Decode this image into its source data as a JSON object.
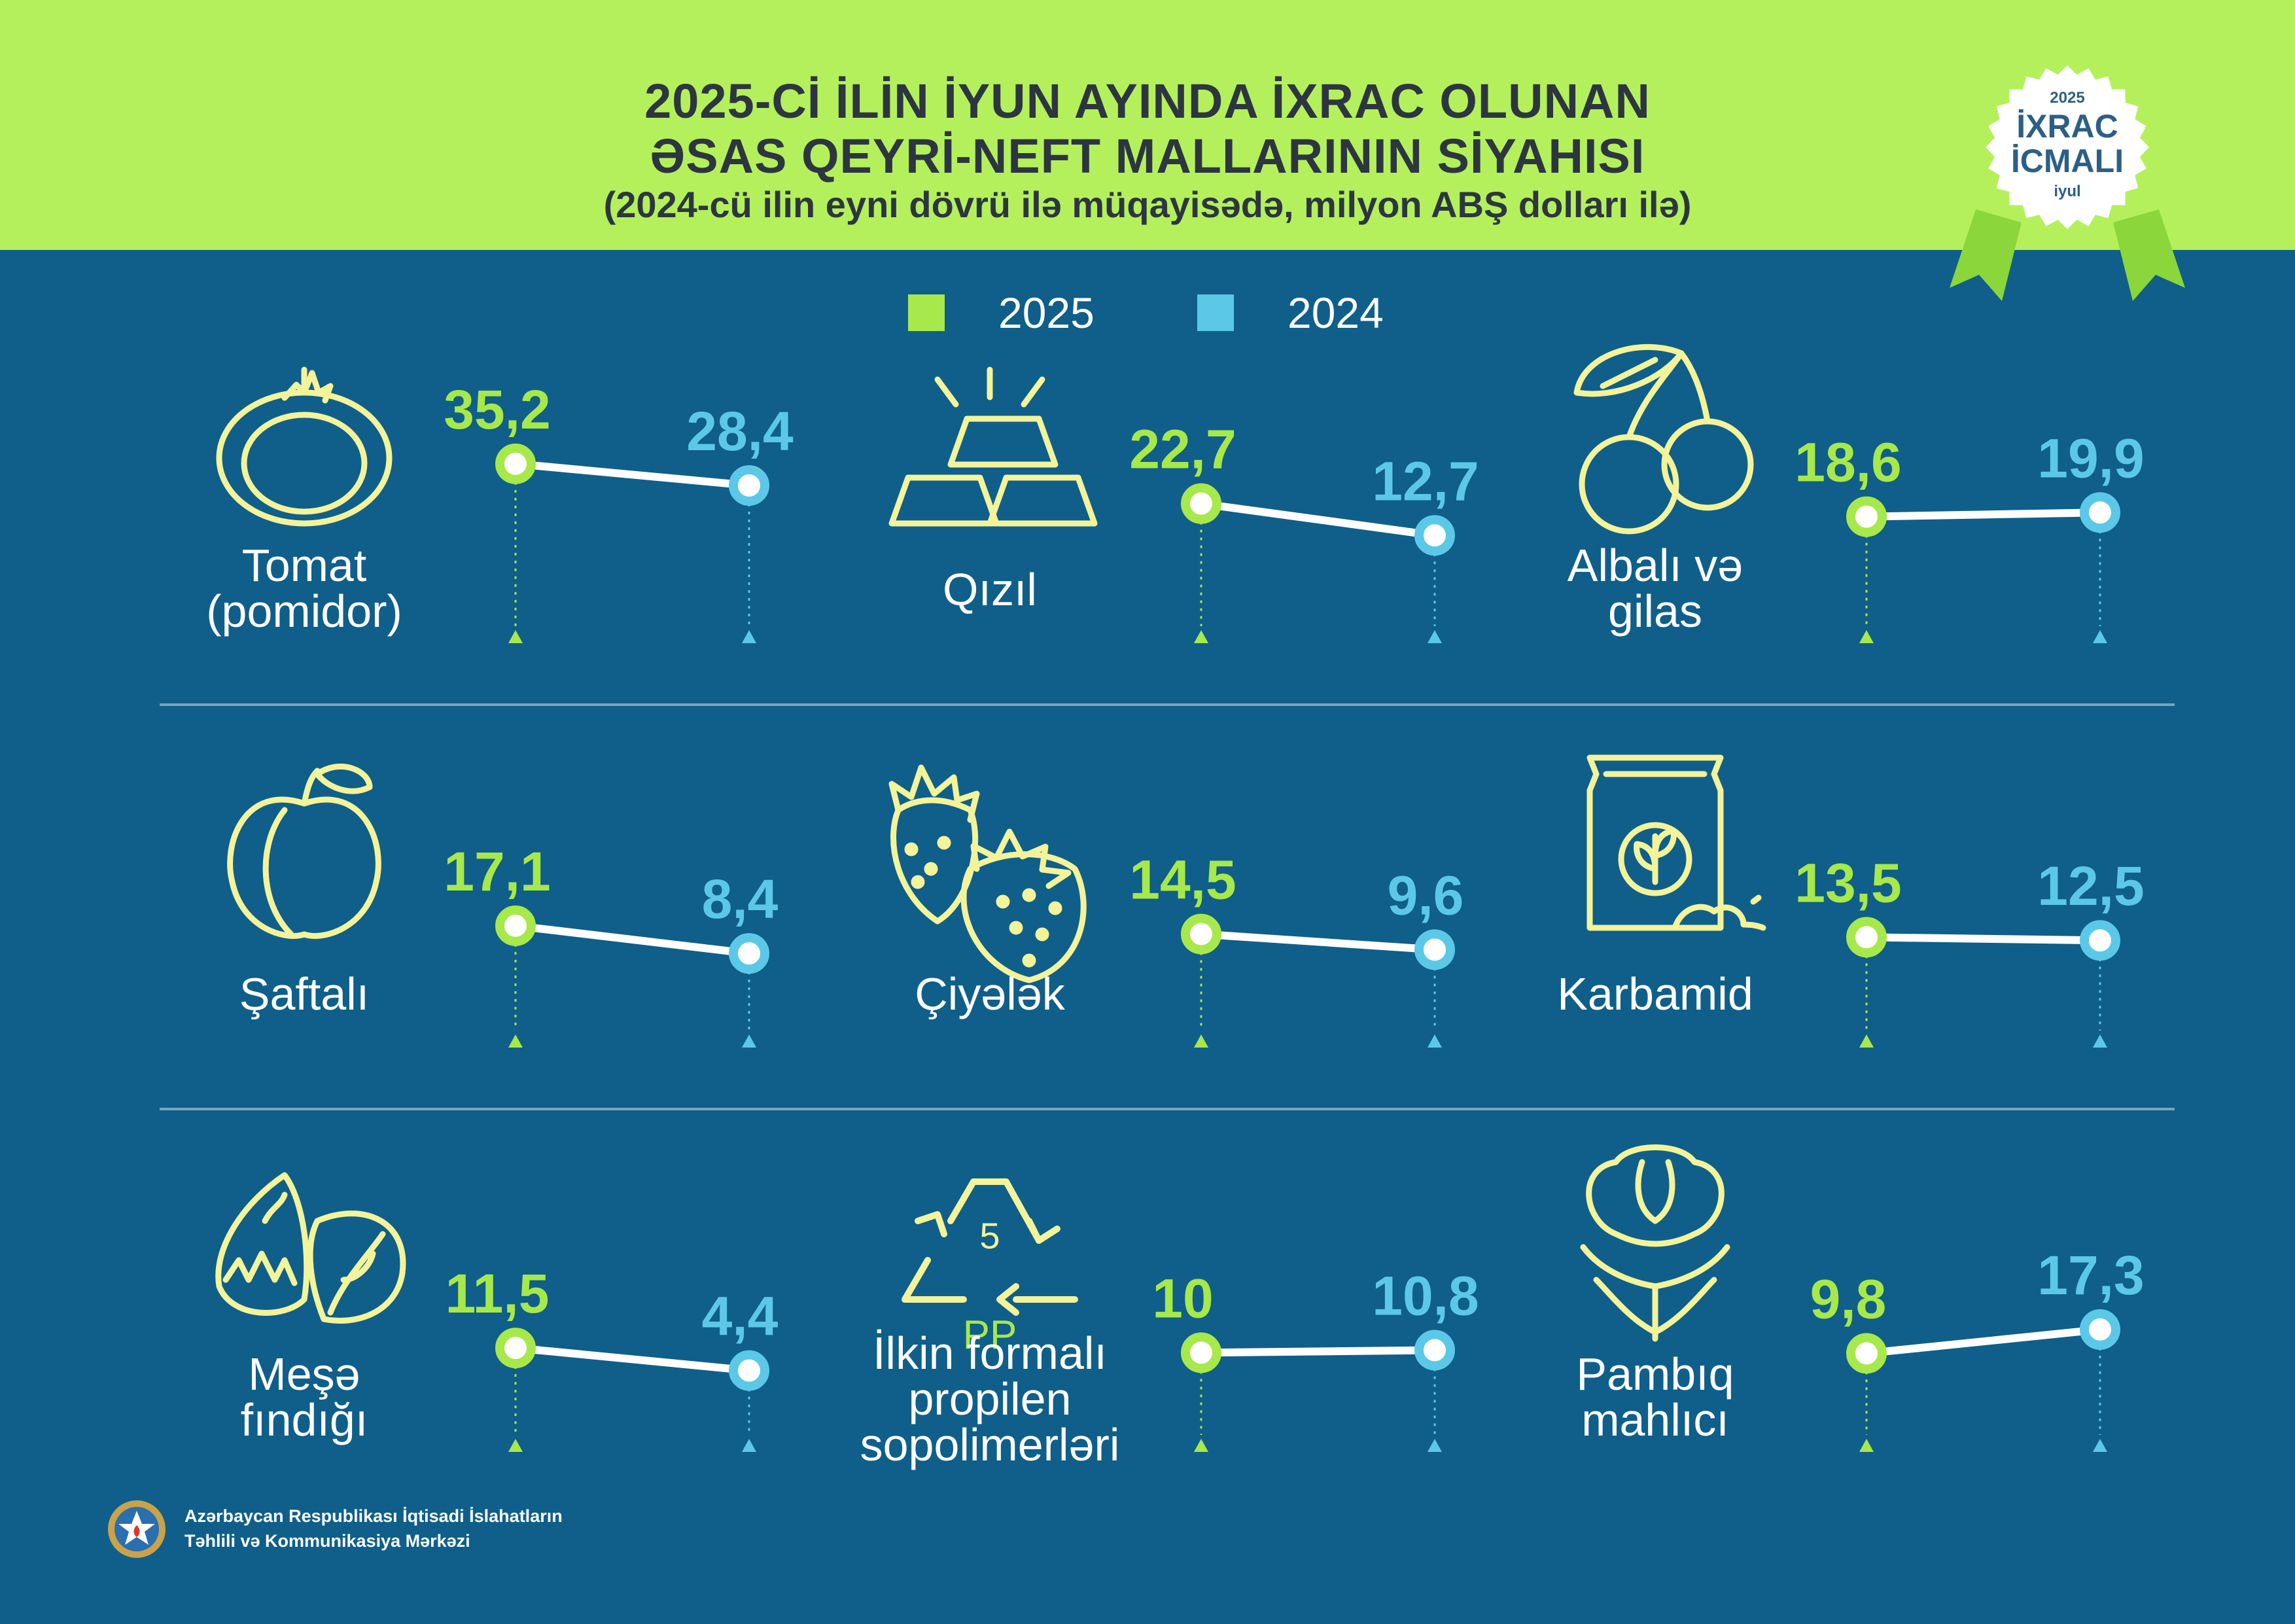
{
  "header": {
    "title_line1": "2025-Cİ İLİN İYUN AYINDA İXRAC OLUNAN",
    "title_line2": "ƏSAS QEYRİ-NEFT MALLARININ SİYAHISI",
    "subtitle": "(2024-cü ilin eyni dövrü ilə müqayisədə, milyon ABŞ dolları ilə)"
  },
  "badge": {
    "year": "2025",
    "line1": "İXRAC",
    "line2": "İCMALI",
    "month": "iyul"
  },
  "legend": {
    "label_2025": "2025",
    "label_2024": "2024"
  },
  "colors": {
    "header": "#b4f05c",
    "background": "#0f5f8a",
    "y2025": "#a7e84a",
    "y2024": "#5cc8e8",
    "icon": "#f3f39a",
    "line": "#ffffff"
  },
  "chart_data": {
    "type": "slope",
    "title": "2025-Cİ İLİN İYUN AYINDA İXRAC OLUNAN ƏSAS QEYRİ-NEFT MALLARININ SİYAHISI",
    "subtitle": "(2024-cü ilin eyni dövrü ilə müqayisədə, milyon ABŞ dolları ilə)",
    "series_names": [
      "2025",
      "2024"
    ],
    "items": [
      {
        "label": [
          "Tomat",
          "(pomidor)"
        ],
        "icon": "tomato-icon",
        "v2025": 35.2,
        "v2024": 28.4,
        "t2025": "35,2",
        "t2024": "28,4"
      },
      {
        "label": [
          "Qızıl"
        ],
        "icon": "gold-bars-icon",
        "v2025": 22.7,
        "v2024": 12.7,
        "t2025": "22,7",
        "t2024": "12,7"
      },
      {
        "label": [
          "Albalı və",
          "gilas"
        ],
        "icon": "cherry-icon",
        "v2025": 18.6,
        "v2024": 19.9,
        "t2025": "18,6",
        "t2024": "19,9"
      },
      {
        "label": [
          "Şaftalı"
        ],
        "icon": "peach-icon",
        "v2025": 17.1,
        "v2024": 8.4,
        "t2025": "17,1",
        "t2024": "8,4"
      },
      {
        "label": [
          "Çiyələk"
        ],
        "icon": "strawberry-icon",
        "v2025": 14.5,
        "v2024": 9.6,
        "t2025": "14,5",
        "t2024": "9,6"
      },
      {
        "label": [
          "Karbamid"
        ],
        "icon": "fertilizer-bag-icon",
        "v2025": 13.5,
        "v2024": 12.5,
        "t2025": "13,5",
        "t2024": "12,5"
      },
      {
        "label": [
          "Meşə",
          "fındığı"
        ],
        "icon": "hazelnut-icon",
        "v2025": 11.5,
        "v2024": 4.4,
        "t2025": "11,5",
        "t2024": "4,4"
      },
      {
        "label": [
          "İlkin formalı",
          "propilen",
          "sopolimerləri"
        ],
        "icon": "recycle-pp-icon",
        "v2025": 10,
        "v2024": 10.8,
        "t2025": "10",
        "t2024": "10,8"
      },
      {
        "label": [
          "Pambıq",
          "mahlıcı"
        ],
        "icon": "cotton-icon",
        "v2025": 9.8,
        "v2024": 17.3,
        "t2025": "9,8",
        "t2024": "17,3"
      }
    ]
  },
  "recycle_symbol": {
    "number": "5",
    "code": "PP"
  },
  "footer": {
    "line1": "Azərbaycan Respublikası İqtisadi İslahatların",
    "line2": "Təhlili və Kommunikasiya Mərkəzi"
  }
}
